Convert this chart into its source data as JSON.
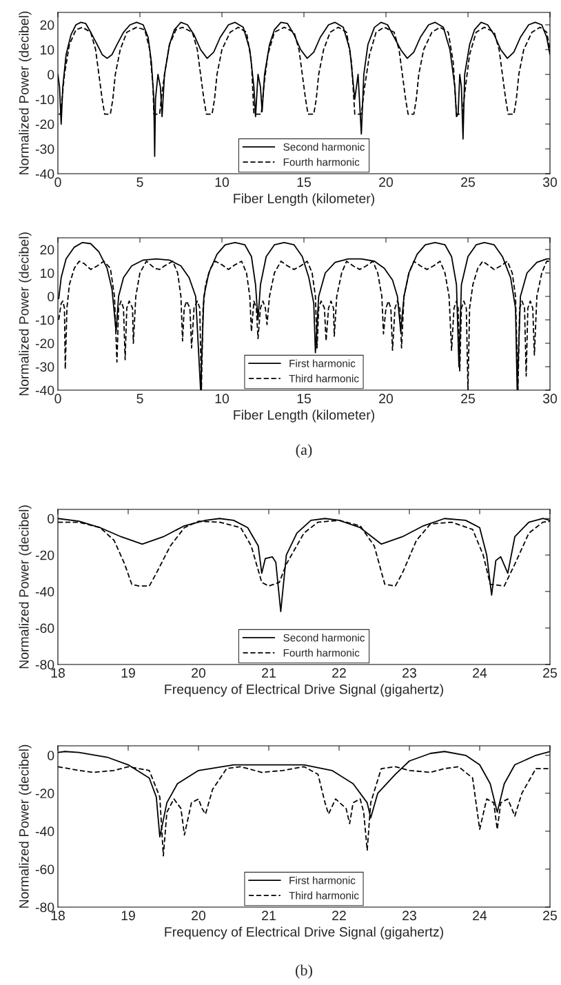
{
  "chart_data": [
    {
      "type": "line",
      "xlabel": "Fiber Length (kilometer)",
      "ylabel": "Normalized Power (decibel)",
      "xlim": [
        0,
        30
      ],
      "ylim": [
        -40,
        25
      ],
      "xticks": [
        0,
        5,
        10,
        15,
        20,
        25,
        30
      ],
      "yticks": [
        -40,
        -30,
        -20,
        -10,
        0,
        10,
        20
      ],
      "legend": "bottom",
      "grid": false,
      "series": [
        {
          "name": "Second harmonic",
          "color": "#000000",
          "line_style": "solid",
          "x": [
            0,
            0.1,
            0.2,
            0.3,
            0.5,
            0.8,
            1.1,
            1.4,
            1.7,
            2.0,
            2.4,
            2.7,
            3.0,
            3.3,
            3.6,
            4.0,
            4.4,
            4.8,
            5.2,
            5.5,
            5.7,
            5.85,
            5.9,
            5.95,
            6.1,
            6.25,
            6.35,
            6.5,
            6.8,
            7.1,
            7.5,
            7.9,
            8.3,
            8.7,
            9.1,
            9.5,
            9.9,
            10.4,
            10.8,
            11.3,
            11.7,
            11.95,
            12.05,
            12.2,
            12.35,
            12.45,
            12.6,
            12.9,
            13.2,
            13.6,
            14.0,
            14.4,
            14.8,
            15.2,
            15.6,
            16.0,
            16.5,
            16.9,
            17.4,
            17.8,
            18.1,
            18.3,
            18.5,
            18.65,
            18.9,
            19.3,
            19.7,
            20.1,
            20.5,
            20.9,
            21.3,
            21.7,
            22.1,
            22.6,
            23.0,
            23.5,
            23.9,
            24.2,
            24.3,
            24.4,
            24.5,
            24.6,
            24.7,
            24.8,
            25.1,
            25.4,
            25.8,
            26.2,
            26.6,
            27.0,
            27.4,
            27.8,
            28.2,
            28.7,
            29.1,
            29.5,
            29.8,
            30
          ],
          "values": [
            0,
            -5,
            -20,
            -5,
            8,
            16,
            20,
            21,
            20.5,
            17,
            12,
            8,
            6.5,
            8,
            12,
            17,
            20,
            21,
            20,
            15,
            5,
            -10,
            -33,
            -10,
            0,
            -5,
            -17,
            0,
            12,
            18,
            21,
            20,
            16,
            10,
            6.5,
            9,
            15,
            20,
            21,
            19,
            10,
            -5,
            -17,
            0,
            -5,
            -15,
            0,
            12,
            18,
            21,
            20.5,
            16,
            10,
            6.5,
            9,
            15,
            20,
            21,
            19,
            10,
            -10,
            0,
            -24,
            0,
            12,
            19,
            21,
            20,
            15,
            10,
            6.5,
            9,
            15,
            20,
            21,
            19,
            10,
            -5,
            -17,
            -16,
            0,
            -5,
            -26,
            0,
            12,
            18,
            21,
            20,
            16,
            10,
            6.5,
            9,
            15,
            20,
            21,
            20,
            15,
            8
          ]
        },
        {
          "name": "Fourth harmonic",
          "color": "#000000",
          "line_style": "dashed",
          "x": [
            0.05,
            0.15,
            0.25,
            0.4,
            0.7,
            1.1,
            1.5,
            2.0,
            2.3,
            2.5,
            2.7,
            2.85,
            3.2,
            3.35,
            3.5,
            3.8,
            4.2,
            4.8,
            5.3,
            5.6,
            5.8,
            5.85,
            6.2,
            6.3,
            6.5,
            6.8,
            7.2,
            7.6,
            8.2,
            8.5,
            8.7,
            8.9,
            9.05,
            9.4,
            9.55,
            9.7,
            10.0,
            10.5,
            11.0,
            11.5,
            11.8,
            11.95,
            12.4,
            12.55,
            12.8,
            13.2,
            13.8,
            14.4,
            14.7,
            14.9,
            15.1,
            15.25,
            15.6,
            15.75,
            15.9,
            16.2,
            16.6,
            17.1,
            17.6,
            17.9,
            18.1,
            18.5,
            18.7,
            19.0,
            19.4,
            19.9,
            20.5,
            20.8,
            21.0,
            21.2,
            21.35,
            21.7,
            21.85,
            22.0,
            22.3,
            22.8,
            23.3,
            23.8,
            24.1,
            24.3,
            24.65,
            24.85,
            25.1,
            25.5,
            26.0,
            26.6,
            26.9,
            27.1,
            27.3,
            27.45,
            27.8,
            27.95,
            28.1,
            28.4,
            28.9,
            29.4,
            29.8,
            30
          ],
          "values": [
            -16,
            -16,
            -10,
            0,
            12,
            18,
            19,
            17,
            10,
            0,
            -10,
            -16,
            -16,
            -10,
            0,
            10,
            17,
            19,
            18,
            10,
            -5,
            -16,
            -16,
            -10,
            0,
            12,
            18,
            19,
            17,
            10,
            0,
            -10,
            -16,
            -16,
            -10,
            0,
            10,
            17,
            19,
            17,
            5,
            -16,
            -16,
            -5,
            8,
            17,
            19,
            17,
            10,
            0,
            -10,
            -16,
            -16,
            -10,
            0,
            10,
            17,
            19,
            17,
            5,
            -16,
            -16,
            -5,
            8,
            17,
            19,
            17,
            10,
            0,
            -10,
            -16,
            -16,
            -10,
            0,
            10,
            17,
            19,
            17,
            5,
            -16,
            -16,
            -5,
            8,
            17,
            19,
            17,
            10,
            0,
            -10,
            -16,
            -16,
            -10,
            0,
            10,
            17,
            19,
            17,
            10
          ]
        }
      ]
    },
    {
      "type": "line",
      "xlabel": "Fiber Length (kilometer)",
      "ylabel": "Normalized Power (decibel)",
      "xlim": [
        0,
        30
      ],
      "ylim": [
        -40,
        25
      ],
      "xticks": [
        0,
        5,
        10,
        15,
        20,
        25,
        30
      ],
      "yticks": [
        -40,
        -30,
        -20,
        -10,
        0,
        10,
        20
      ],
      "legend": "bottom",
      "grid": false,
      "annotations": [
        "(a)"
      ],
      "series": [
        {
          "name": "First harmonic",
          "color": "#000000",
          "line_style": "solid",
          "x": [
            0.05,
            0.2,
            0.5,
            1.0,
            1.5,
            2.0,
            2.5,
            3.0,
            3.3,
            3.55,
            3.7,
            4.0,
            4.5,
            5.2,
            6.0,
            6.8,
            7.5,
            8.0,
            8.4,
            8.7,
            8.9,
            9.2,
            9.7,
            10.2,
            10.8,
            11.4,
            11.8,
            12.05,
            12.2,
            12.35,
            12.7,
            13.2,
            13.8,
            14.4,
            14.9,
            15.3,
            15.6,
            15.7,
            15.9,
            16.3,
            16.9,
            17.7,
            18.5,
            19.3,
            19.9,
            20.4,
            20.7,
            20.9,
            21.1,
            21.4,
            21.9,
            22.4,
            23.0,
            23.6,
            24.0,
            24.3,
            24.45,
            24.6,
            25.0,
            25.5,
            26.0,
            26.6,
            27.1,
            27.6,
            27.9,
            28.0,
            28.2,
            28.6,
            29.2,
            29.8,
            30
          ],
          "values": [
            -1,
            8,
            16,
            21,
            23,
            22.5,
            19,
            12,
            3,
            -15,
            0,
            8,
            13,
            15.5,
            16,
            15.5,
            13,
            8,
            0,
            -40,
            0,
            10,
            18,
            22,
            23,
            22,
            17,
            5,
            -10,
            5,
            17,
            22,
            23,
            22,
            17,
            8,
            -3,
            -24,
            0,
            10,
            14.5,
            16,
            16,
            15,
            12,
            7,
            0,
            -15,
            0,
            10,
            18,
            22,
            23,
            22,
            17,
            5,
            -30,
            5,
            17,
            22,
            23,
            22,
            17,
            8,
            -5,
            -40,
            0,
            10,
            14.5,
            16,
            16
          ]
        },
        {
          "name": "Third harmonic",
          "color": "#000000",
          "line_style": "dashed",
          "x": [
            0.05,
            0.2,
            0.3,
            0.4,
            0.45,
            0.55,
            0.7,
            1.0,
            1.3,
            1.6,
            2.0,
            2.4,
            2.8,
            3.2,
            3.45,
            3.6,
            3.7,
            3.85,
            4.0,
            4.1,
            4.2,
            4.35,
            4.55,
            4.6,
            4.75,
            5.0,
            5.4,
            5.9,
            6.2,
            6.5,
            7.0,
            7.3,
            7.5,
            7.6,
            7.7,
            7.85,
            8.05,
            8.15,
            8.3,
            8.5,
            8.65,
            8.75,
            8.85,
            9.0,
            9.3,
            9.6,
            10.0,
            10.4,
            10.8,
            11.2,
            11.5,
            11.7,
            11.8,
            11.95,
            12.1,
            12.2,
            12.35,
            12.5,
            12.65,
            12.75,
            12.9,
            13.2,
            13.6,
            14.0,
            14.4,
            14.8,
            15.2,
            15.5,
            15.7,
            15.8,
            15.9,
            16.05,
            16.25,
            16.35,
            16.5,
            16.65,
            16.8,
            16.85,
            17.0,
            17.3,
            17.6,
            18.0,
            18.4,
            18.8,
            19.2,
            19.5,
            19.75,
            19.85,
            20.0,
            20.15,
            20.3,
            20.4,
            20.55,
            20.7,
            20.85,
            20.95,
            21.1,
            21.4,
            21.7,
            22.1,
            22.5,
            22.9,
            23.3,
            23.6,
            23.85,
            24.0,
            24.15,
            24.3,
            24.4,
            24.5,
            24.6,
            24.75,
            24.9,
            25.0,
            25.1,
            25.3,
            25.6,
            25.9,
            26.3,
            26.6,
            27.0,
            27.4,
            27.7,
            27.9,
            28.05,
            28.15,
            28.3,
            28.45,
            28.55,
            28.65,
            28.8,
            28.95,
            29.05,
            29.2,
            29.5,
            29.8,
            30
          ],
          "values": [
            -10,
            -3,
            -2,
            -5,
            -31,
            -5,
            5,
            12,
            15,
            14,
            11.5,
            13,
            15,
            12,
            0,
            -28,
            -5,
            -2,
            -5,
            -27,
            -5,
            -2,
            -5,
            -20,
            0,
            10,
            15,
            12,
            11.5,
            13,
            15,
            10,
            0,
            -19,
            -5,
            -2,
            -5,
            -22,
            -5,
            -2,
            -5,
            -40,
            -5,
            5,
            12,
            15,
            13.5,
            11.5,
            13.5,
            15,
            10,
            0,
            -15,
            -2,
            -5,
            -18,
            -5,
            -2,
            -5,
            -12,
            0,
            10,
            15,
            13,
            11.5,
            13,
            15,
            10,
            0,
            -22,
            -5,
            -2,
            -5,
            -19,
            -5,
            -2,
            -5,
            -17,
            0,
            10,
            15,
            13,
            11.5,
            13,
            15,
            10,
            0,
            -16,
            -5,
            -2,
            -5,
            -23,
            -5,
            -2,
            -5,
            -22,
            0,
            10,
            15,
            13,
            11.5,
            13,
            15,
            10,
            0,
            -23,
            -5,
            -2,
            -5,
            -32,
            -5,
            -2,
            -5,
            -40,
            -5,
            5,
            12,
            15,
            13,
            11.5,
            13,
            15,
            10,
            0,
            -40,
            -5,
            -2,
            -5,
            -34,
            -5,
            -2,
            -5,
            -25,
            0,
            10,
            15,
            15
          ]
        }
      ]
    },
    {
      "type": "line",
      "xlabel": "Frequency of Electrical Drive Signal (gigahertz)",
      "ylabel": "Normalized Power (decibel)",
      "xlim": [
        18,
        25
      ],
      "ylim": [
        -80,
        5
      ],
      "xticks": [
        18,
        19,
        20,
        21,
        22,
        23,
        24,
        25
      ],
      "yticks": [
        -80,
        -60,
        -40,
        -20,
        0
      ],
      "legend": "bottom",
      "grid": false,
      "series": [
        {
          "name": "Second harmonic",
          "color": "#000000",
          "line_style": "solid",
          "x": [
            18.0,
            18.3,
            18.6,
            18.9,
            19.2,
            19.5,
            19.8,
            20.1,
            20.3,
            20.5,
            20.7,
            20.85,
            20.9,
            20.95,
            21.05,
            21.1,
            21.17,
            21.25,
            21.4,
            21.6,
            21.8,
            22.0,
            22.3,
            22.6,
            22.9,
            23.2,
            23.5,
            23.8,
            24.0,
            24.1,
            24.17,
            24.23,
            24.3,
            24.4,
            24.5,
            24.7,
            24.9,
            25.0
          ],
          "values": [
            0,
            -1.5,
            -5,
            -10,
            -14,
            -10,
            -4,
            -1,
            0,
            -1,
            -5,
            -15,
            -30,
            -22,
            -21,
            -24,
            -51,
            -20,
            -8,
            -1,
            0,
            -1,
            -5,
            -14,
            -10,
            -4,
            0,
            -1,
            -5,
            -20,
            -42,
            -23,
            -21,
            -30,
            -10,
            -2,
            0,
            -1
          ]
        },
        {
          "name": "Fourth harmonic",
          "color": "#000000",
          "line_style": "dashed",
          "x": [
            18.0,
            18.3,
            18.6,
            18.8,
            18.95,
            19.05,
            19.15,
            19.3,
            19.4,
            19.6,
            19.8,
            20.0,
            20.3,
            20.6,
            20.75,
            20.9,
            21.0,
            21.15,
            21.25,
            21.5,
            21.7,
            22.0,
            22.3,
            22.5,
            22.65,
            22.8,
            22.9,
            23.1,
            23.3,
            23.6,
            23.9,
            24.05,
            24.15,
            24.35,
            24.5,
            24.7,
            24.9,
            25.0
          ],
          "values": [
            -2,
            -2,
            -5,
            -12,
            -25,
            -36,
            -37,
            -37,
            -30,
            -15,
            -5,
            -1.5,
            -2,
            -5,
            -15,
            -35,
            -37,
            -35,
            -25,
            -8,
            -2,
            -1,
            -4,
            -15,
            -36,
            -37,
            -30,
            -12,
            -3,
            -2,
            -6,
            -20,
            -36,
            -37,
            -25,
            -8,
            -2,
            -1.5
          ]
        }
      ]
    },
    {
      "type": "line",
      "xlabel": "Frequency of Electrical Drive Signal (gigahertz)",
      "ylabel": "Normalized Power (decibel)",
      "xlim": [
        18,
        25
      ],
      "ylim": [
        -80,
        5
      ],
      "xticks": [
        18,
        19,
        20,
        21,
        22,
        23,
        24,
        25
      ],
      "yticks": [
        -80,
        -60,
        -40,
        -20,
        0
      ],
      "legend": "bottom",
      "grid": false,
      "annotations": [
        "(b)"
      ],
      "series": [
        {
          "name": "First harmonic",
          "color": "#000000",
          "line_style": "solid",
          "x": [
            18.0,
            18.1,
            18.3,
            18.7,
            19.0,
            19.3,
            19.4,
            19.45,
            19.55,
            19.7,
            20.0,
            20.5,
            21.0,
            21.5,
            21.9,
            22.2,
            22.4,
            22.45,
            22.55,
            22.8,
            23.0,
            23.3,
            23.5,
            23.8,
            24.0,
            24.15,
            24.25,
            24.35,
            24.5,
            24.8,
            25.0
          ],
          "values": [
            1.5,
            2,
            1.5,
            -1,
            -5,
            -12,
            -22,
            -43,
            -25,
            -15,
            -8,
            -5,
            -5,
            -5,
            -8,
            -15,
            -25,
            -33,
            -20,
            -10,
            -3,
            1,
            2,
            0,
            -5,
            -15,
            -30,
            -15,
            -5,
            0,
            2
          ]
        },
        {
          "name": "Third harmonic",
          "color": "#000000",
          "line_style": "dashed",
          "x": [
            18.0,
            18.3,
            18.5,
            18.8,
            19.0,
            19.3,
            19.45,
            19.5,
            19.55,
            19.65,
            19.75,
            19.8,
            19.9,
            20.0,
            20.05,
            20.1,
            20.2,
            20.4,
            20.6,
            20.9,
            21.2,
            21.5,
            21.7,
            21.8,
            21.85,
            21.95,
            22.1,
            22.15,
            22.2,
            22.3,
            22.35,
            22.4,
            22.45,
            22.6,
            22.8,
            23.0,
            23.3,
            23.5,
            23.7,
            23.9,
            24.0,
            24.1,
            24.2,
            24.25,
            24.3,
            24.4,
            24.5,
            24.6,
            24.8,
            25.0
          ],
          "values": [
            -6,
            -8,
            -9,
            -8,
            -6,
            -8,
            -22,
            -53,
            -30,
            -23,
            -28,
            -42,
            -25,
            -23,
            -28,
            -31,
            -18,
            -7,
            -6,
            -9,
            -8,
            -6,
            -10,
            -25,
            -31,
            -23,
            -28,
            -36,
            -25,
            -23,
            -30,
            -50,
            -25,
            -7,
            -6,
            -8,
            -9,
            -7,
            -6,
            -12,
            -39,
            -23,
            -25,
            -39,
            -25,
            -23,
            -32,
            -20,
            -7,
            -7
          ]
        }
      ]
    }
  ]
}
